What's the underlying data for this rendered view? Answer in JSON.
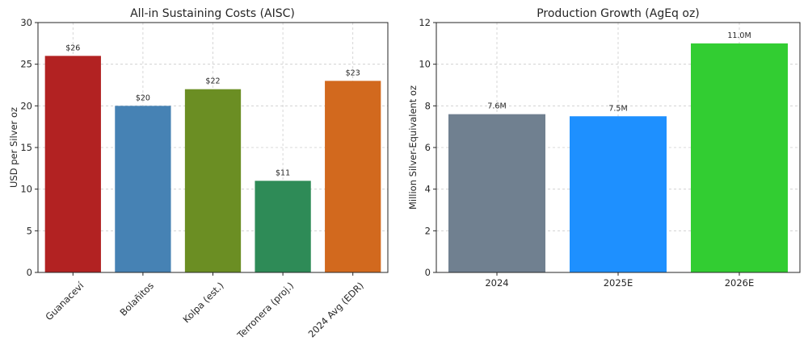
{
  "chart_data": [
    {
      "type": "bar",
      "title": "All-in Sustaining Costs (AISC)",
      "xlabel": "",
      "ylabel": "USD per Silver oz",
      "categories": [
        "Guanaceví",
        "Bolañitos",
        "Kolpa (est.)",
        "Terronera (proj.)",
        "2024 Avg (EDR)"
      ],
      "values": [
        26,
        20,
        22,
        11,
        23
      ],
      "data_labels": [
        "$26",
        "$20",
        "$22",
        "$11",
        "$23"
      ],
      "colors": [
        "#b22222",
        "#4682b4",
        "#6b8e23",
        "#2e8b57",
        "#d2691e"
      ],
      "ylim": [
        0,
        30
      ],
      "yticks": [
        0,
        5,
        10,
        15,
        20,
        25,
        30
      ],
      "grid": true,
      "xtick_rotation": 45
    },
    {
      "type": "bar",
      "title": "Production Growth (AgEq oz)",
      "xlabel": "",
      "ylabel": "Million Silver-Equivalent oz",
      "categories": [
        "2024",
        "2025E",
        "2026E"
      ],
      "values": [
        7.6,
        7.5,
        11.0
      ],
      "data_labels": [
        "7.6M",
        "7.5M",
        "11.0M"
      ],
      "colors": [
        "#708090",
        "#1e90ff",
        "#32cd32"
      ],
      "ylim": [
        0,
        12
      ],
      "yticks": [
        0,
        2,
        4,
        6,
        8,
        10,
        12
      ],
      "grid": true,
      "xtick_rotation": 0
    }
  ]
}
